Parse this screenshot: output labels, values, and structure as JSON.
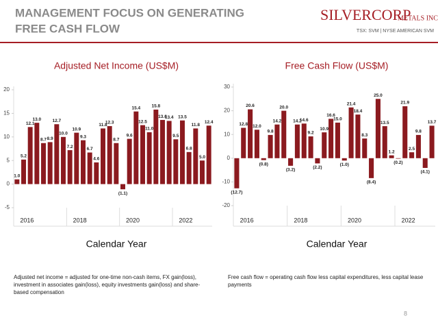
{
  "header": {
    "title_lines": [
      "MANAGEMENT FOCUS ON GENERATING",
      "FREE CASH FLOW"
    ],
    "logo": "SILVERCORP",
    "logo_sub": "METALS INC.",
    "tickers": "TSX: SVM | NYSE AMERICAN SVM"
  },
  "chart_data": [
    {
      "type": "bar",
      "title": "Adjusted Net Income (US$M)",
      "x_label": "Calendar Year",
      "categories": [
        null,
        "2016",
        null,
        null,
        null,
        null,
        null,
        null,
        null,
        "2018",
        null,
        null,
        null,
        null,
        null,
        null,
        null,
        "2020",
        null,
        null,
        null,
        null,
        null,
        null,
        null,
        "2022",
        null,
        null,
        null,
        null
      ],
      "values": [
        1.0,
        5.2,
        12.1,
        13.0,
        8.7,
        8.9,
        12.7,
        10.0,
        7.2,
        10.9,
        9.3,
        6.7,
        4.6,
        11.8,
        12.3,
        8.7,
        -1.1,
        9.6,
        15.4,
        12.5,
        11.0,
        15.8,
        13.6,
        13.4,
        9.5,
        13.5,
        6.8,
        11.8,
        5.0,
        12.4
      ],
      "value_labels": [
        "1.0",
        "5.2",
        "12.1",
        "13.0",
        "8.7",
        "8.9",
        "12.7",
        "10.0",
        "7.2",
        "10.9",
        "9.3",
        "6.7",
        "4.6",
        "11.8",
        "12.3",
        "8.7",
        "(1.1)",
        "9.6",
        "15.4",
        "12.5",
        "11.0",
        "15.8",
        "13.6",
        "13.4",
        "9.5",
        "13.5",
        "6.8",
        "11.8",
        "5.0",
        "12.4"
      ],
      "color": "#8b1a1f",
      "ylim": [
        -5,
        20
      ],
      "yticks": [
        -5,
        0,
        5,
        10,
        15,
        20
      ]
    },
    {
      "type": "bar",
      "title": "Free Cash Flow (US$M)",
      "x_label": "Calendar Year",
      "categories": [
        null,
        "2016",
        null,
        null,
        null,
        null,
        null,
        null,
        null,
        "2018",
        null,
        null,
        null,
        null,
        null,
        null,
        null,
        "2020",
        null,
        null,
        null,
        null,
        null,
        null,
        null,
        "2022",
        null,
        null,
        null,
        null
      ],
      "values": [
        -12.7,
        12.8,
        20.6,
        12.0,
        -0.8,
        9.8,
        14.2,
        20.0,
        -3.2,
        14.2,
        14.6,
        9.2,
        -2.2,
        10.9,
        16.6,
        15.0,
        -1.0,
        21.4,
        18.4,
        8.3,
        -8.4,
        25.0,
        13.5,
        1.2,
        -0.2,
        21.9,
        2.5,
        9.8,
        -4.1,
        13.7
      ],
      "value_labels": [
        "(12.7)",
        "12.8",
        "20.6",
        "12.0",
        "(0.8)",
        "9.8",
        "14.2",
        "20.0",
        "(3.2)",
        "14.2",
        "14.6",
        "9.2",
        "(2.2)",
        "10.9",
        "16.6",
        "15.0",
        "(1.0)",
        "21.4",
        "18.4",
        "8.3",
        "(8.4)",
        "25.0",
        "13.5",
        "1.2",
        "(0.2)",
        "21.9",
        "2.5",
        "9.8",
        "(4.1)",
        "13.7"
      ],
      "color": "#8b1a1f",
      "ylim": [
        -20,
        30
      ],
      "yticks": [
        -20,
        -10,
        0,
        10,
        20,
        30
      ]
    }
  ],
  "footnotes": [
    "Adjusted net income = adjusted for one-time non-cash items, FX gain(loss), investment in associates gain(loss), equity investments gain(loss) and share-based compensation",
    "Free cash flow = operating cash flow less capital expenditures, less capital lease payments"
  ],
  "page_number": "8"
}
